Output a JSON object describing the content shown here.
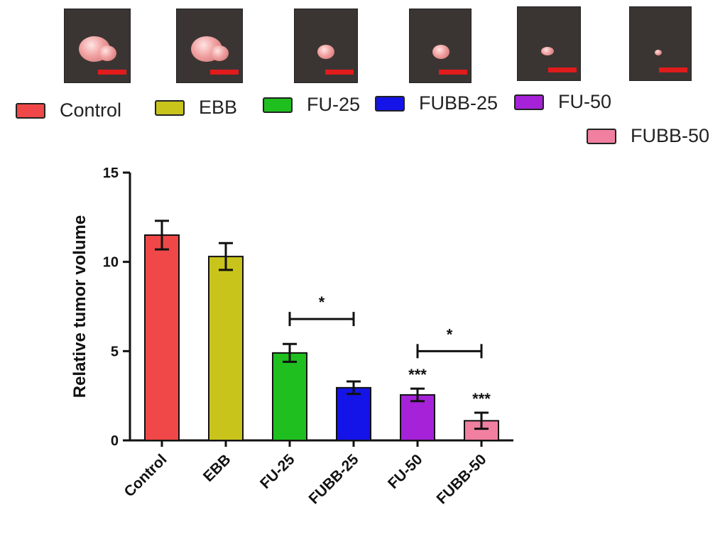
{
  "photos": [
    {
      "group": "Control",
      "tumor_size": "large"
    },
    {
      "group": "EBB",
      "tumor_size": "large"
    },
    {
      "group": "FU-25",
      "tumor_size": "medium"
    },
    {
      "group": "FUBB-25",
      "tumor_size": "medium"
    },
    {
      "group": "FU-50",
      "tumor_size": "small"
    },
    {
      "group": "FUBB-50",
      "tumor_size": "tiny"
    }
  ],
  "legend": [
    {
      "label": "Control",
      "color": "#f04848"
    },
    {
      "label": "EBB",
      "color": "#c8c41c"
    },
    {
      "label": "FU-25",
      "color": "#1fbf1f"
    },
    {
      "label": "FUBB-25",
      "color": "#1414e8"
    },
    {
      "label": "FU-50",
      "color": "#a522d8"
    },
    {
      "label": "FUBB-50",
      "color": "#f07fa0"
    }
  ],
  "chart_data": {
    "type": "bar",
    "categories": [
      "Control",
      "EBB",
      "FU-25",
      "FUBB-25",
      "FU-50",
      "FUBB-50"
    ],
    "values": [
      11.5,
      10.3,
      4.9,
      2.95,
      2.55,
      1.1
    ],
    "errors": [
      0.8,
      0.75,
      0.5,
      0.35,
      0.35,
      0.45
    ],
    "colors": [
      "#f04848",
      "#c8c41c",
      "#1fbf1f",
      "#1414e8",
      "#a522d8",
      "#f07fa0"
    ],
    "ylabel": "Relative tumor volume",
    "xlabel": "",
    "title": "",
    "ylim": [
      0,
      15
    ],
    "yticks": [
      0,
      5,
      10,
      15
    ],
    "significance_marks": [
      {
        "index": 4,
        "label": "***"
      },
      {
        "index": 5,
        "label": "***"
      }
    ],
    "brackets": [
      {
        "from": 2,
        "to": 3,
        "label": "*"
      },
      {
        "from": 4,
        "to": 5,
        "label": "*"
      }
    ],
    "grid": false
  }
}
